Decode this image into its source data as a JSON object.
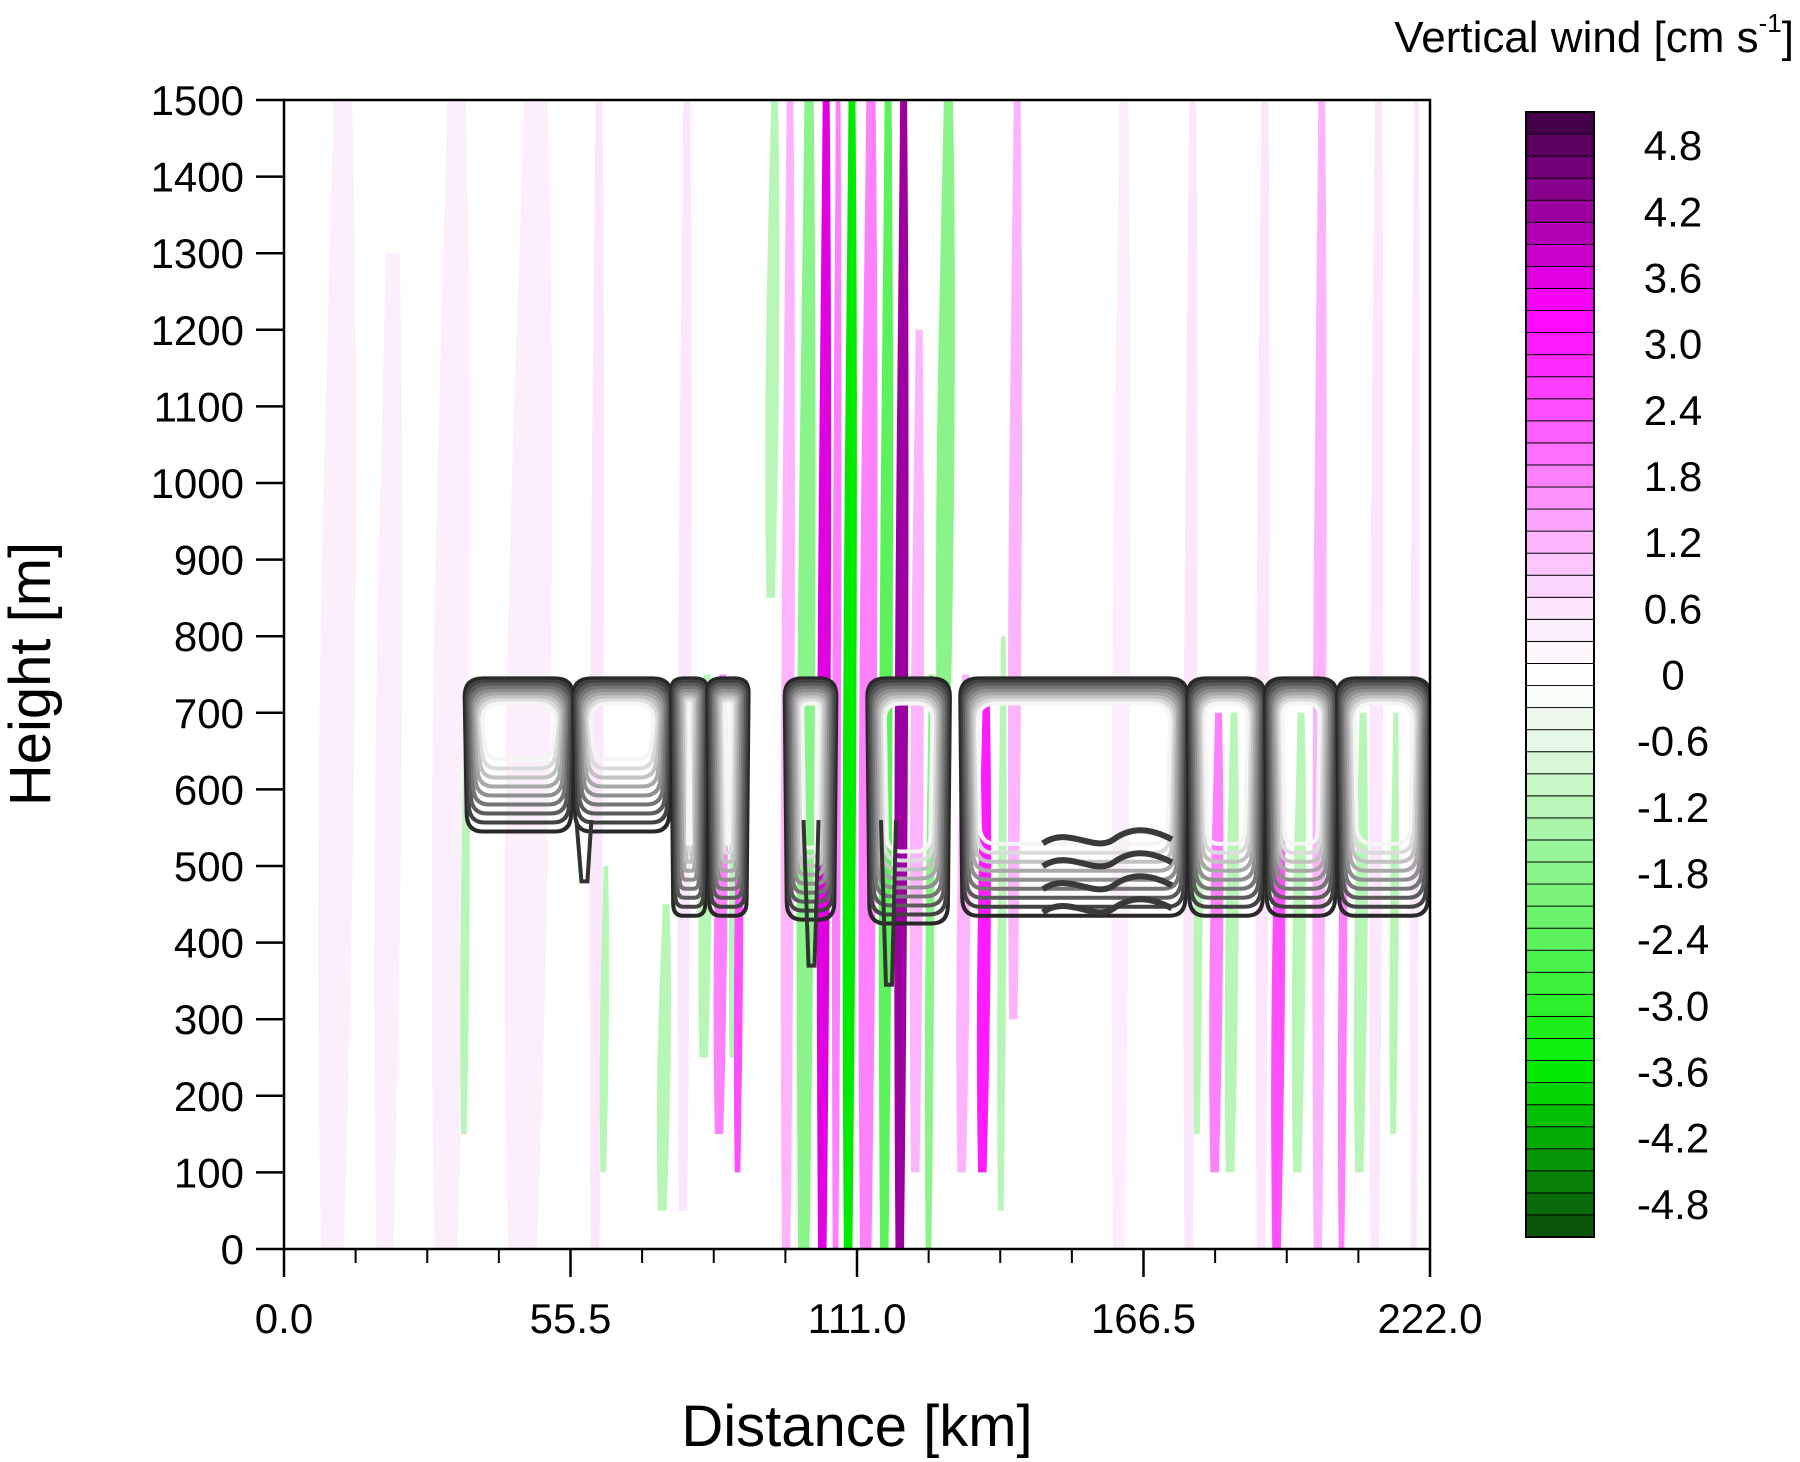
{
  "chart_data": {
    "type": "heatmap",
    "title": "",
    "xlabel": "Distance [km]",
    "ylabel": "Height [m]",
    "xlim": [
      0,
      222
    ],
    "ylim": [
      0,
      1500
    ],
    "x_ticks": [
      0,
      55.5,
      111,
      166.5,
      222
    ],
    "x_tick_labels": [
      "0.0",
      "55.5",
      "111.0",
      "166.5",
      "222.0"
    ],
    "x_minor_tick_step": 13.875,
    "y_ticks": [
      0,
      100,
      200,
      300,
      400,
      500,
      600,
      700,
      800,
      900,
      1000,
      1100,
      1200,
      1300,
      1400,
      1500
    ],
    "y_tick_labels": [
      "0",
      "100",
      "200",
      "300",
      "400",
      "500",
      "600",
      "700",
      "800",
      "900",
      "1000",
      "1100",
      "1200",
      "1300",
      "1400",
      "1500"
    ],
    "grid": false,
    "colorbar": {
      "title_main": "Vertical wind [cm s",
      "title_sup": "-1",
      "title_end": "]",
      "range": [
        -5.1,
        5.1
      ],
      "step": 0.2,
      "labels": [
        "4.8",
        "4.2",
        "3.6",
        "3.0",
        "2.4",
        "1.8",
        "1.2",
        "0.6",
        "0",
        "-0.6",
        "-1.2",
        "-1.8",
        "-2.4",
        "-3.0",
        "-3.6",
        "-4.2",
        "-4.8"
      ],
      "label_values": [
        4.8,
        4.2,
        3.6,
        3.0,
        2.4,
        1.8,
        1.2,
        0.6,
        0,
        -0.6,
        -1.2,
        -1.8,
        -2.4,
        -3.0,
        -3.6,
        -4.2,
        -4.8
      ],
      "colors": {
        "strong_positive": "#3a0040",
        "positive": "#ff00ff",
        "weak_positive": "#fbe6fb",
        "zero": "#ffffff",
        "weak_negative": "#e6f8e6",
        "negative": "#00ee00",
        "strong_negative": "#0a4a0a"
      }
    },
    "shaded_bands": [
      {
        "x0": 6,
        "x1": 14,
        "y0": 0,
        "y1": 1500,
        "w": 0.4
      },
      {
        "x0": 17,
        "x1": 23,
        "y0": 0,
        "y1": 1300,
        "w": 0.4
      },
      {
        "x0": 28,
        "x1": 36,
        "y0": 0,
        "y1": 1500,
        "w": 0.4
      },
      {
        "x0": 42,
        "x1": 52,
        "y0": 0,
        "y1": 1500,
        "w": 0.4
      },
      {
        "x0": 34,
        "x1": 36,
        "y0": 150,
        "y1": 700,
        "w": -1.2
      },
      {
        "x0": 59,
        "x1": 62,
        "y0": 0,
        "y1": 1500,
        "w": 0.6
      },
      {
        "x0": 61,
        "x1": 63,
        "y0": 100,
        "y1": 500,
        "w": -1.2
      },
      {
        "x0": 72,
        "x1": 75,
        "y0": 50,
        "y1": 450,
        "w": -1.2
      },
      {
        "x0": 76,
        "x1": 79,
        "y0": 50,
        "y1": 1500,
        "w": 0.6
      },
      {
        "x0": 80,
        "x1": 83,
        "y0": 250,
        "y1": 750,
        "w": -1.2
      },
      {
        "x0": 83,
        "x1": 86,
        "y0": 150,
        "y1": 750,
        "w": 1.8
      },
      {
        "x0": 86,
        "x1": 88,
        "y0": 250,
        "y1": 700,
        "w": -1.2
      },
      {
        "x0": 87,
        "x1": 89,
        "y0": 100,
        "y1": 700,
        "w": 2.4
      },
      {
        "x0": 93,
        "x1": 96,
        "y0": 850,
        "y1": 1500,
        "w": -1.2
      },
      {
        "x0": 96,
        "x1": 99,
        "y0": 0,
        "y1": 1500,
        "w": 1.2
      },
      {
        "x0": 99,
        "x1": 103,
        "y0": 0,
        "y1": 1500,
        "w": -1.8
      },
      {
        "x0": 103,
        "x1": 106,
        "y0": 0,
        "y1": 1500,
        "w": 3.6
      },
      {
        "x0": 106,
        "x1": 108,
        "y0": 0,
        "y1": 1500,
        "w": 1.8
      },
      {
        "x0": 108,
        "x1": 111,
        "y0": 0,
        "y1": 1500,
        "w": -3.6
      },
      {
        "x0": 111,
        "x1": 115,
        "y0": 0,
        "y1": 1500,
        "w": 1.8
      },
      {
        "x0": 115,
        "x1": 118,
        "y0": 0,
        "y1": 1500,
        "w": -2.4
      },
      {
        "x0": 118,
        "x1": 121,
        "y0": 0,
        "y1": 1500,
        "w": 4.2
      },
      {
        "x0": 121,
        "x1": 124,
        "y0": 100,
        "y1": 1200,
        "w": 1.2
      },
      {
        "x0": 124,
        "x1": 126,
        "y0": 0,
        "y1": 750,
        "w": -1.8
      },
      {
        "x0": 126,
        "x1": 130,
        "y0": 600,
        "y1": 1500,
        "w": -1.8
      },
      {
        "x0": 130,
        "x1": 133,
        "y0": 100,
        "y1": 750,
        "w": 1.2
      },
      {
        "x0": 134,
        "x1": 137,
        "y0": 100,
        "y1": 720,
        "w": 3.0
      },
      {
        "x0": 138,
        "x1": 140,
        "y0": 50,
        "y1": 800,
        "w": -1.2
      },
      {
        "x0": 140,
        "x1": 143,
        "y0": 300,
        "y1": 1500,
        "w": 1.2
      },
      {
        "x0": 160,
        "x1": 164,
        "y0": 0,
        "y1": 1500,
        "w": 0.4
      },
      {
        "x0": 174,
        "x1": 177,
        "y0": 0,
        "y1": 1500,
        "w": 0.6
      },
      {
        "x0": 176,
        "x1": 178,
        "y0": 150,
        "y1": 700,
        "w": -1.2
      },
      {
        "x0": 179,
        "x1": 182,
        "y0": 100,
        "y1": 700,
        "w": 1.8
      },
      {
        "x0": 182,
        "x1": 185,
        "y0": 100,
        "y1": 700,
        "w": -1.2
      },
      {
        "x0": 188,
        "x1": 191,
        "y0": 0,
        "y1": 1500,
        "w": 0.6
      },
      {
        "x0": 191,
        "x1": 194,
        "y0": 0,
        "y1": 700,
        "w": 2.4
      },
      {
        "x0": 195,
        "x1": 198,
        "y0": 100,
        "y1": 700,
        "w": -1.2
      },
      {
        "x0": 199,
        "x1": 202,
        "y0": 0,
        "y1": 1500,
        "w": 1.2
      },
      {
        "x0": 204,
        "x1": 206,
        "y0": 0,
        "y1": 700,
        "w": 1.8
      },
      {
        "x0": 207,
        "x1": 210,
        "y0": 100,
        "y1": 700,
        "w": -1.2
      },
      {
        "x0": 210,
        "x1": 213,
        "y0": 0,
        "y1": 1500,
        "w": 0.6
      },
      {
        "x0": 214,
        "x1": 216,
        "y0": 150,
        "y1": 700,
        "w": -1.2
      },
      {
        "x0": 218,
        "x1": 220,
        "y0": 0,
        "y1": 1500,
        "w": 0.6
      }
    ],
    "overlay_contours": {
      "description_units": "km / m",
      "slabs": [
        {
          "x0": 35,
          "x1": 56,
          "top": 745,
          "bottom": 545
        },
        {
          "x0": 56,
          "x1": 75,
          "top": 745,
          "bottom": 545
        },
        {
          "x0": 75,
          "x1": 82,
          "top": 745,
          "bottom": 435
        },
        {
          "x0": 82,
          "x1": 90,
          "top": 745,
          "bottom": 435
        },
        {
          "x0": 97,
          "x1": 107,
          "top": 745,
          "bottom": 430
        },
        {
          "x0": 113,
          "x1": 129,
          "top": 745,
          "bottom": 425
        },
        {
          "x0": 131,
          "x1": 175,
          "top": 745,
          "bottom": 435
        },
        {
          "x0": 175,
          "x1": 190,
          "top": 745,
          "bottom": 435
        },
        {
          "x0": 190,
          "x1": 204,
          "top": 745,
          "bottom": 435
        },
        {
          "x0": 204,
          "x1": 222,
          "top": 745,
          "bottom": 435
        }
      ],
      "drips": [
        {
          "x": 58,
          "bottom": 480
        },
        {
          "x": 102,
          "bottom": 370
        },
        {
          "x": 117,
          "bottom": 345
        }
      ],
      "waves": [
        {
          "x0": 147,
          "x1": 172,
          "y": 540
        },
        {
          "x0": 147,
          "x1": 172,
          "y": 510
        },
        {
          "x0": 147,
          "x1": 172,
          "y": 480
        },
        {
          "x0": 147,
          "x1": 172,
          "y": 450
        }
      ]
    }
  }
}
